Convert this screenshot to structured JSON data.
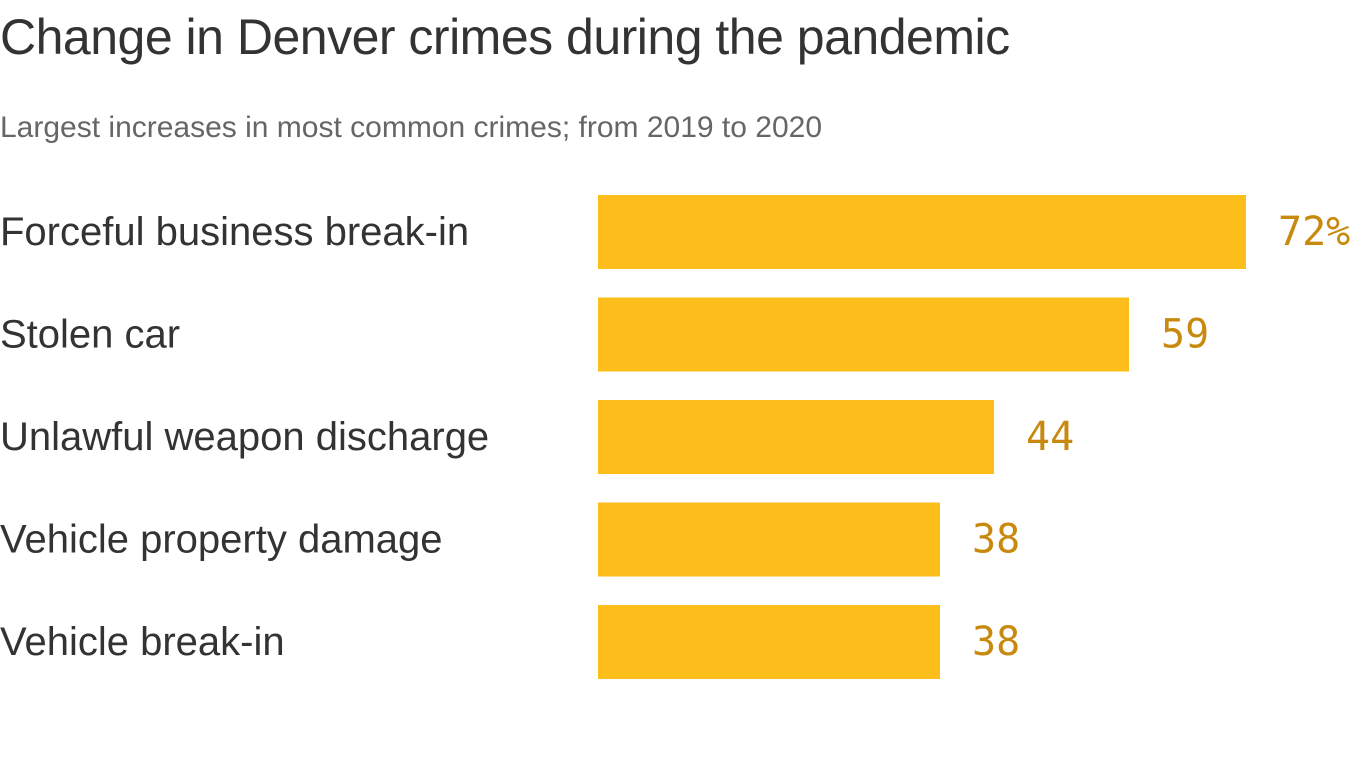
{
  "title": "Change in Denver crimes during the pandemic",
  "subtitle": "Largest increases in most common crimes; from 2019 to 2020",
  "colors": {
    "bar": "#fdbd1a",
    "value_label": "#c88a0e",
    "title": "#333333",
    "subtitle": "#666666"
  },
  "chart_data": {
    "type": "bar",
    "orientation": "horizontal",
    "title": "Change in Denver crimes during the pandemic",
    "subtitle": "Largest increases in most common crimes; from 2019 to 2020",
    "categories": [
      "Forceful business break-in",
      "Stolen car",
      "Unlawful weapon discharge",
      "Vehicle property damage",
      "Vehicle break-in"
    ],
    "values": [
      72,
      59,
      44,
      38,
      38
    ],
    "value_labels": [
      "72%",
      "59",
      "44",
      "38",
      "38"
    ],
    "unit": "%",
    "xlim": [
      0,
      72
    ],
    "grid": false,
    "legend": "none"
  }
}
